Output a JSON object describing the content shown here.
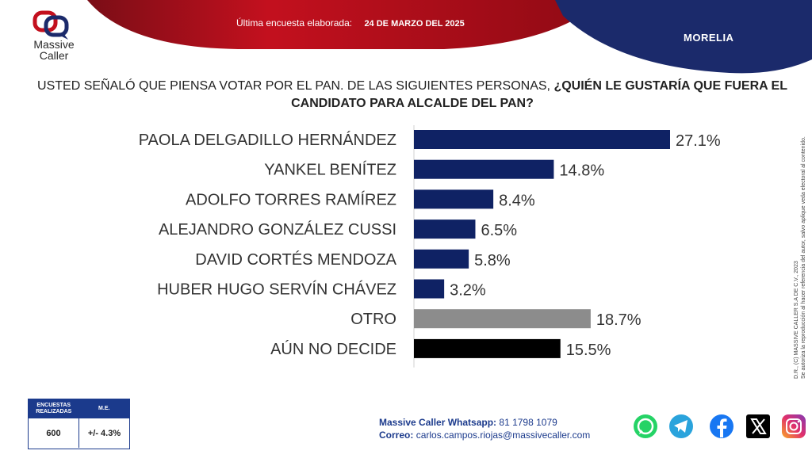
{
  "header": {
    "brand_line1": "Massive",
    "brand_line2": "Caller",
    "survey_label": "Última encuesta elaborada:",
    "survey_date": "24 DE MARZO DEL 2025",
    "city": "MORELIA"
  },
  "question": {
    "part1": "USTED SEÑALÓ QUE PIENSA VOTAR POR EL PAN.  DE LAS SIGUIENTES PERSONAS, ",
    "part2": "¿QUIÉN LE GUSTARÍA QUE FUERA EL CANDIDATO PARA ALCALDE DEL PAN?"
  },
  "chart_data": {
    "type": "bar",
    "orientation": "horizontal",
    "categories": [
      "PAOLA DELGADILLO HERNÁNDEZ",
      "YANKEL BENÍTEZ",
      "ADOLFO TORRES RAMÍREZ",
      "ALEJANDRO GONZÁLEZ CUSSI",
      "DAVID CORTÉS MENDOZA",
      "HUBER HUGO SERVÍN CHÁVEZ",
      "OTRO",
      "AÚN NO DECIDE"
    ],
    "values": [
      27.1,
      14.8,
      8.4,
      6.5,
      5.8,
      3.2,
      18.7,
      15.5
    ],
    "labels": [
      "27.1%",
      "14.8%",
      "8.4%",
      "6.5%",
      "5.8%",
      "3.2%",
      "18.7%",
      "15.5%"
    ],
    "colors": [
      "#0f2264",
      "#0f2264",
      "#0f2264",
      "#0f2264",
      "#0f2264",
      "#0f2264",
      "#8c8c8c",
      "#000000"
    ],
    "xlim": [
      0,
      30
    ],
    "title": "",
    "xlabel": "",
    "ylabel": ""
  },
  "stats": {
    "header1": "ENCUESTAS REALIZADAS",
    "header2": "M.E.",
    "value1": "600",
    "value2": "+/- 4.3%"
  },
  "contact": {
    "whatsapp_label": "Massive Caller Whatsapp:",
    "whatsapp_value": "81 1798 1079",
    "email_label": "Correo:",
    "email_value": "carlos.campos.riojas@massivecaller.com"
  },
  "legal": {
    "line1": "D.R., (C) MASSIVE CALLER S.A DE C.V., 2023",
    "line2": "Se autoriza la reproducción al hacer referencia del autor, salvo aplique veda electoral al contenido."
  },
  "social": [
    "whatsapp-icon",
    "telegram-icon",
    "facebook-icon",
    "x-icon",
    "instagram-icon"
  ]
}
